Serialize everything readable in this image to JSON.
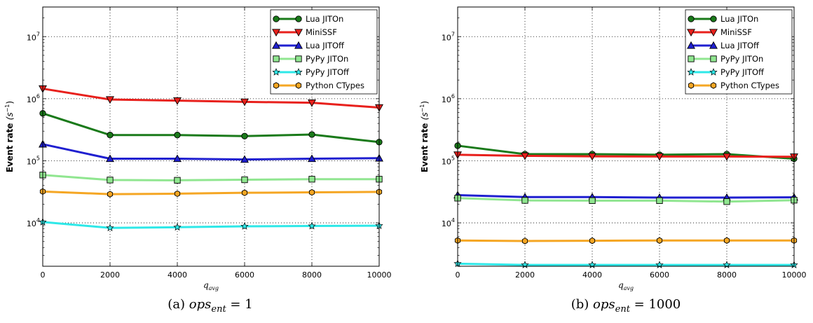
{
  "chart_data": [
    {
      "type": "line",
      "caption": "(a) ops_ent = 1",
      "caption_prefix": "(a)",
      "caption_var": "ops",
      "caption_sub": "ent",
      "caption_eq": "= 1",
      "xlabel": "q",
      "xlabel_sub": "avg",
      "ylabel": "Event rate",
      "ylabel_unit": "(s",
      "ylabel_unit_sup": "−1",
      "ylabel_unit_close": ")",
      "y_scale": "log",
      "xlim": [
        0,
        10000
      ],
      "ylim": [
        2000,
        30000000
      ],
      "x_ticks": [
        "0",
        "2000",
        "4000",
        "6000",
        "8000",
        "10000"
      ],
      "y_ticks": [
        {
          "value": 10000,
          "base": "10",
          "exp": "4"
        },
        {
          "value": 100000,
          "base": "10",
          "exp": "5"
        },
        {
          "value": 1000000,
          "base": "10",
          "exp": "6"
        },
        {
          "value": 10000000,
          "base": "10",
          "exp": "7"
        }
      ],
      "grid": true,
      "legend_position": "top-right",
      "x": [
        0,
        2000,
        4000,
        6000,
        8000,
        10000
      ],
      "series": [
        {
          "name": "Lua JITOn",
          "color": "#1a7a1a",
          "marker": "circle",
          "markerFill": "#1a7a1a",
          "values": [
            580000,
            260000,
            260000,
            250000,
            265000,
            200000
          ]
        },
        {
          "name": "MiniSSF",
          "color": "#e8201c",
          "marker": "triangle-down",
          "markerFill": "#e8201c",
          "values": [
            1450000,
            970000,
            930000,
            890000,
            860000,
            720000
          ]
        },
        {
          "name": "Lua JITOff",
          "color": "#1f1fd0",
          "marker": "triangle-up",
          "markerFill": "#1f1fd0",
          "values": [
            185000,
            108000,
            108000,
            105000,
            108000,
            110000
          ]
        },
        {
          "name": "PyPy JITOn",
          "color": "#90e690",
          "marker": "square",
          "markerFill": "#90e690",
          "values": [
            59000,
            49000,
            48500,
            49500,
            50500,
            50500
          ]
        },
        {
          "name": "PyPy JITOff",
          "color": "#2ee8e8",
          "marker": "star",
          "markerFill": "#2ee8e8",
          "values": [
            10300,
            8300,
            8500,
            8800,
            8900,
            9000
          ]
        },
        {
          "name": "Python CTypes",
          "color": "#f5a623",
          "marker": "hexagon",
          "markerFill": "#f5a623",
          "values": [
            32000,
            29000,
            29500,
            30500,
            31000,
            31500
          ]
        }
      ]
    },
    {
      "type": "line",
      "caption": "(b) ops_ent = 1000",
      "caption_prefix": "(b)",
      "caption_var": "ops",
      "caption_sub": "ent",
      "caption_eq": "= 1000",
      "xlabel": "q",
      "xlabel_sub": "avg",
      "ylabel": "Event rate",
      "ylabel_unit": "(s",
      "ylabel_unit_sup": "−1",
      "ylabel_unit_close": ")",
      "y_scale": "log",
      "xlim": [
        0,
        10000
      ],
      "ylim": [
        2000,
        30000000
      ],
      "x_ticks": [
        "0",
        "2000",
        "4000",
        "6000",
        "8000",
        "10000"
      ],
      "y_ticks": [
        {
          "value": 10000,
          "base": "10",
          "exp": "4"
        },
        {
          "value": 100000,
          "base": "10",
          "exp": "5"
        },
        {
          "value": 1000000,
          "base": "10",
          "exp": "6"
        },
        {
          "value": 10000000,
          "base": "10",
          "exp": "7"
        }
      ],
      "grid": true,
      "legend_position": "top-right",
      "x": [
        0,
        2000,
        4000,
        6000,
        8000,
        10000
      ],
      "series": [
        {
          "name": "Lua JITOn",
          "color": "#1a7a1a",
          "marker": "circle",
          "markerFill": "#1a7a1a",
          "values": [
            175000,
            128000,
            128000,
            125000,
            128000,
            108000
          ]
        },
        {
          "name": "MiniSSF",
          "color": "#e8201c",
          "marker": "triangle-down",
          "markerFill": "#e8201c",
          "values": [
            125000,
            120000,
            118000,
            117000,
            117000,
            116000
          ]
        },
        {
          "name": "Lua JITOff",
          "color": "#1f1fd0",
          "marker": "triangle-up",
          "markerFill": "#1f1fd0",
          "values": [
            28000,
            26000,
            26000,
            25500,
            25500,
            25800
          ]
        },
        {
          "name": "PyPy JITOn",
          "color": "#90e690",
          "marker": "square",
          "markerFill": "#90e690",
          "values": [
            25000,
            23000,
            22800,
            22800,
            22000,
            23200
          ]
        },
        {
          "name": "PyPy JITOff",
          "color": "#2ee8e8",
          "marker": "star",
          "markerFill": "#2ee8e8",
          "values": [
            2200,
            2100,
            2100,
            2100,
            2100,
            2100
          ]
        },
        {
          "name": "Python CTypes",
          "color": "#f5a623",
          "marker": "hexagon",
          "markerFill": "#f5a623",
          "values": [
            5200,
            5100,
            5150,
            5200,
            5200,
            5200
          ]
        }
      ]
    }
  ]
}
